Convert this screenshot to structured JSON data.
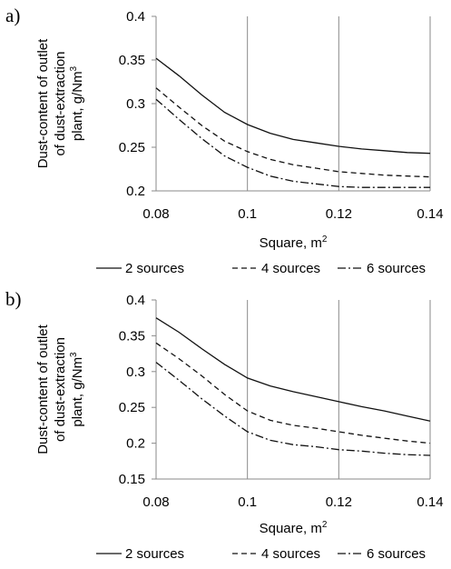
{
  "chart_data": [
    {
      "type": "line",
      "panel_label": "a)",
      "x": [
        0.08,
        0.085,
        0.09,
        0.095,
        0.1,
        0.105,
        0.11,
        0.115,
        0.12,
        0.125,
        0.13,
        0.135,
        0.14
      ],
      "series": [
        {
          "name": "2 sources",
          "style": "solid",
          "values": [
            0.352,
            0.332,
            0.31,
            0.29,
            0.276,
            0.266,
            0.259,
            0.255,
            0.251,
            0.248,
            0.246,
            0.244,
            0.243
          ]
        },
        {
          "name": "4 sources",
          "style": "dashed",
          "values": [
            0.318,
            0.296,
            0.275,
            0.257,
            0.245,
            0.236,
            0.23,
            0.226,
            0.222,
            0.22,
            0.218,
            0.217,
            0.216
          ]
        },
        {
          "name": "6 sources",
          "style": "dashdot",
          "values": [
            0.305,
            0.282,
            0.26,
            0.24,
            0.227,
            0.217,
            0.211,
            0.208,
            0.205,
            0.204,
            0.204,
            0.204,
            0.204
          ]
        }
      ],
      "xlim": [
        0.08,
        0.14
      ],
      "ylim": [
        0.2,
        0.4
      ],
      "xticks": [
        "0.08",
        "0.1",
        "0.12",
        "0.14"
      ],
      "yticks": [
        "0.2",
        "0.25",
        "0.3",
        "0.35",
        "0.4"
      ],
      "xlabel": "Square, m",
      "xlabel_sup": "2",
      "ylabel_lines": [
        "Dust-content of outlet",
        "of dust-extraction",
        "plant, g/Nm"
      ],
      "ylabel_sup": "3",
      "grid": "vertical",
      "legend_position": "bottom"
    },
    {
      "type": "line",
      "panel_label": "b)",
      "x": [
        0.08,
        0.085,
        0.09,
        0.095,
        0.1,
        0.105,
        0.11,
        0.115,
        0.12,
        0.125,
        0.13,
        0.135,
        0.14
      ],
      "series": [
        {
          "name": "2 sources",
          "style": "solid",
          "values": [
            0.375,
            0.355,
            0.332,
            0.31,
            0.291,
            0.28,
            0.272,
            0.265,
            0.258,
            0.251,
            0.245,
            0.238,
            0.231
          ]
        },
        {
          "name": "4 sources",
          "style": "dashed",
          "values": [
            0.34,
            0.318,
            0.294,
            0.268,
            0.245,
            0.232,
            0.225,
            0.221,
            0.216,
            0.211,
            0.207,
            0.203,
            0.2
          ]
        },
        {
          "name": "6 sources",
          "style": "dashdot",
          "values": [
            0.313,
            0.288,
            0.262,
            0.238,
            0.216,
            0.204,
            0.198,
            0.195,
            0.191,
            0.189,
            0.186,
            0.184,
            0.183
          ]
        }
      ],
      "xlim": [
        0.08,
        0.14
      ],
      "ylim": [
        0.15,
        0.4
      ],
      "xticks": [
        "0.08",
        "0.1",
        "0.12",
        "0.14"
      ],
      "yticks": [
        "0.15",
        "0.2",
        "0.25",
        "0.3",
        "0.35",
        "0.4"
      ],
      "xlabel": "Square, m",
      "xlabel_sup": "2",
      "ylabel_lines": [
        "Dust-content of outlet",
        "of dust-extraction",
        "plant, g/Nm"
      ],
      "ylabel_sup": "3",
      "grid": "vertical",
      "legend_position": "bottom"
    }
  ]
}
